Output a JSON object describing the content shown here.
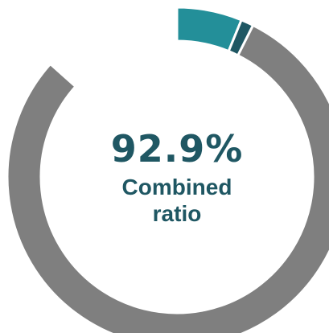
{
  "chart_data": {
    "type": "pie",
    "style": "donut",
    "center_value": "92.9%",
    "center_label": "Combined ratio",
    "series": [
      {
        "value": 0.062,
        "color": "#238f99"
      },
      {
        "value": 0.012,
        "color": "#1f5763"
      },
      {
        "value": 0.792,
        "color": "#7f7f7f"
      },
      {
        "value": 0.134,
        "color": "#ffffff"
      }
    ]
  }
}
